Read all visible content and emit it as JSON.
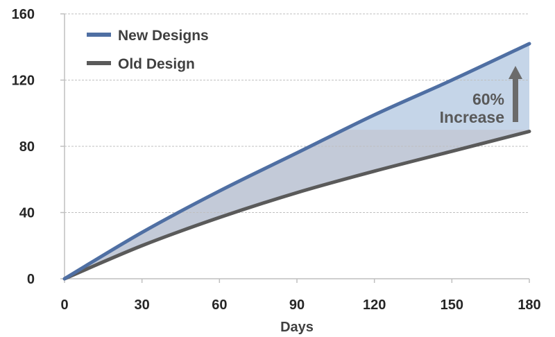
{
  "chart_data": {
    "type": "area",
    "title": "",
    "xlabel": "Days",
    "ylabel": "",
    "xlim": [
      0,
      180
    ],
    "ylim": [
      0,
      160
    ],
    "x_ticks": [
      0,
      30,
      60,
      90,
      120,
      150,
      180
    ],
    "x_tick_labels": [
      "0",
      "30",
      "60",
      "90",
      "120",
      "150",
      "180"
    ],
    "y_ticks": [
      0,
      40,
      80,
      120,
      160
    ],
    "y_tick_labels": [
      "0",
      "40",
      "80",
      "120",
      "160"
    ],
    "grid": "horizontal-dashed",
    "legend_position": "top-left",
    "x": [
      0,
      30,
      60,
      90,
      120,
      150,
      180
    ],
    "series": [
      {
        "name": "New Designs",
        "color": "#4F6FA3",
        "values": [
          0,
          28,
          53,
          76,
          99,
          120,
          142
        ]
      },
      {
        "name": "Old Design",
        "color": "#5A5A5A",
        "values": [
          0,
          20,
          37,
          52,
          65,
          77,
          89
        ]
      }
    ],
    "fill_between": {
      "color": "#C5D5E8",
      "lower_shaded_color": "#C3CAD8"
    },
    "annotation": {
      "lines": [
        "60%",
        "Increase"
      ],
      "arrow_color": "#6B6B6B",
      "arrow_icon": "up-arrow-icon"
    }
  }
}
